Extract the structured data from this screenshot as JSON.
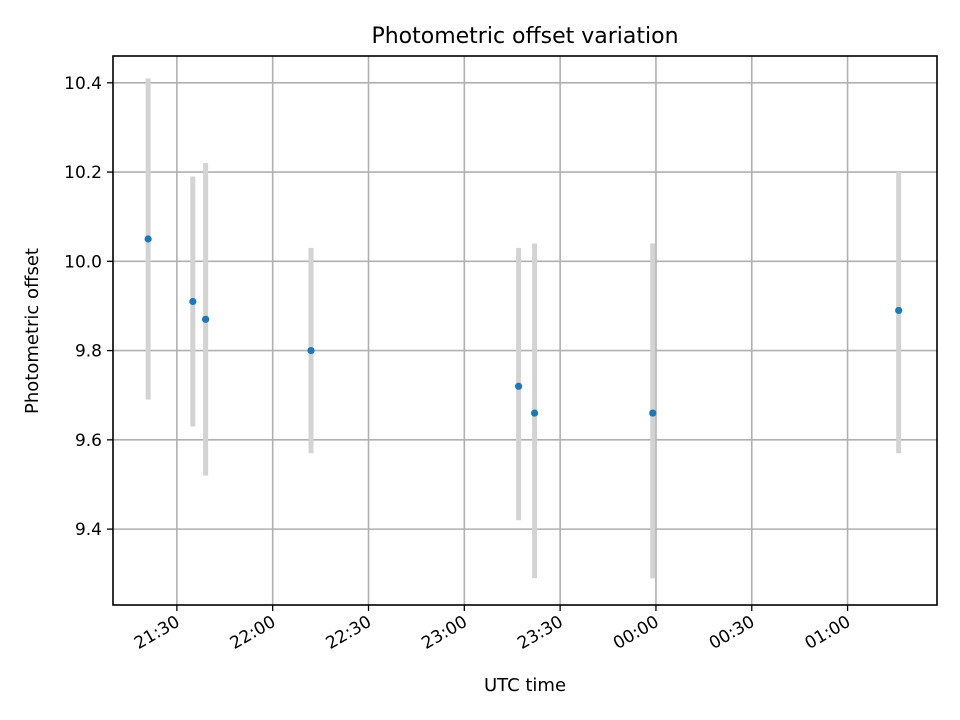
{
  "chart_data": {
    "type": "scatter",
    "title": "Photometric offset variation",
    "xlabel": "UTC time",
    "ylabel": "Photometric offset",
    "grid": true,
    "x_axis": {
      "kind": "time",
      "range": [
        "21:10",
        "01:28"
      ],
      "ticks": [
        "21:30",
        "22:00",
        "22:30",
        "23:00",
        "23:30",
        "00:00",
        "00:30",
        "01:00"
      ]
    },
    "y_axis": {
      "range": [
        9.23,
        10.46
      ],
      "ticks": [
        9.4,
        9.6,
        9.8,
        10.0,
        10.2,
        10.4
      ],
      "tick_labels": [
        "9.4",
        "9.6",
        "9.8",
        "10.0",
        "10.2",
        "10.4"
      ]
    },
    "series": [
      {
        "marker_color": "#1f77b4",
        "errorbar_color": "#d3d3d3",
        "points": [
          {
            "x": "21:21",
            "y": 10.05,
            "y_low": 9.69,
            "y_high": 10.41
          },
          {
            "x": "21:35",
            "y": 9.91,
            "y_low": 9.63,
            "y_high": 10.19
          },
          {
            "x": "21:39",
            "y": 9.87,
            "y_low": 9.52,
            "y_high": 10.22
          },
          {
            "x": "22:12",
            "y": 9.8,
            "y_low": 9.57,
            "y_high": 10.03
          },
          {
            "x": "23:17",
            "y": 9.72,
            "y_low": 9.42,
            "y_high": 10.03
          },
          {
            "x": "23:22",
            "y": 9.66,
            "y_low": 9.29,
            "y_high": 10.04
          },
          {
            "x": "23:59",
            "y": 9.66,
            "y_low": 9.29,
            "y_high": 10.04
          },
          {
            "x": "01:16",
            "y": 9.89,
            "y_low": 9.57,
            "y_high": 10.2
          }
        ]
      }
    ]
  }
}
